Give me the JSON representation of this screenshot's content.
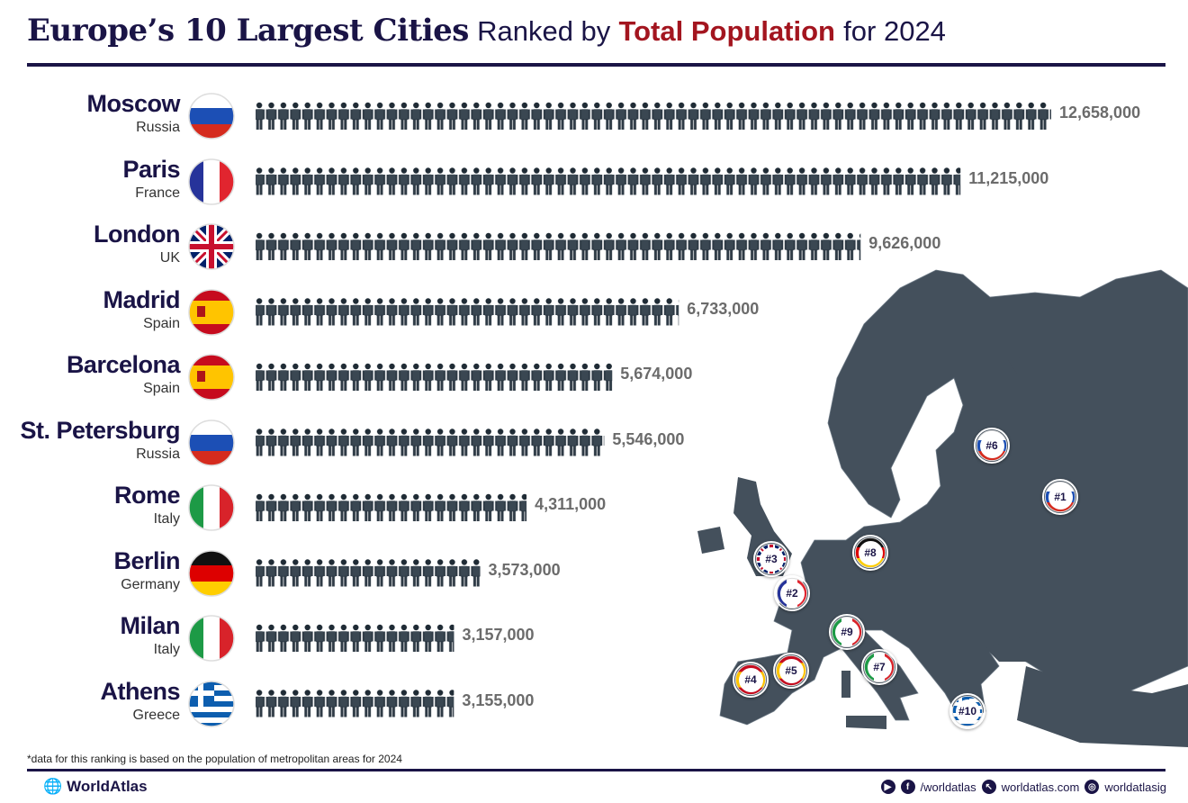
{
  "title": {
    "part1": "Europe’s 10 Largest Cities",
    "part2": "Ranked by",
    "part3": "Total Population",
    "part4": "for 2024"
  },
  "footnote": "*data for this ranking is based on the population of metropolitan areas for 2024",
  "brand": "WorldAtlas",
  "social": {
    "facebook": "/worldatlas",
    "web": "worldatlas.com",
    "instagram": "worldatlasig"
  },
  "colors": {
    "navy": "#1a1446",
    "red": "#a3151f",
    "icon": "#2e3a45",
    "map": "#44505c"
  },
  "chart_data": {
    "type": "bar",
    "style": "pictogram (person icons)",
    "title": "Europe’s 10 Largest Cities Ranked by Total Population for 2024",
    "categories": [
      "Moscow",
      "Paris",
      "London",
      "Madrid",
      "Barcelona",
      "St. Petersburg",
      "Rome",
      "Berlin",
      "Milan",
      "Athens"
    ],
    "countries": [
      "Russia",
      "France",
      "UK",
      "Spain",
      "Spain",
      "Russia",
      "Italy",
      "Germany",
      "Italy",
      "Greece"
    ],
    "values": [
      12658000,
      11215000,
      9626000,
      6733000,
      5674000,
      5546000,
      4311000,
      3573000,
      3157000,
      3155000
    ],
    "labels": [
      "12,658,000",
      "11,215,000",
      "9,626,000",
      "6,733,000",
      "5,674,000",
      "5,546,000",
      "4,311,000",
      "3,573,000",
      "3,157,000",
      "3,155,000"
    ],
    "flags": [
      "russia",
      "france",
      "uk",
      "spain",
      "spain",
      "russia",
      "italy",
      "germany",
      "italy",
      "greece"
    ]
  },
  "map_markers": [
    {
      "label": "#1",
      "flag": "russia"
    },
    {
      "label": "#2",
      "flag": "france"
    },
    {
      "label": "#3",
      "flag": "uk"
    },
    {
      "label": "#4",
      "flag": "spain"
    },
    {
      "label": "#5",
      "flag": "spain"
    },
    {
      "label": "#6",
      "flag": "russia"
    },
    {
      "label": "#7",
      "flag": "italy"
    },
    {
      "label": "#8",
      "flag": "germany"
    },
    {
      "label": "#9",
      "flag": "italy"
    },
    {
      "label": "#10",
      "flag": "greece"
    }
  ]
}
